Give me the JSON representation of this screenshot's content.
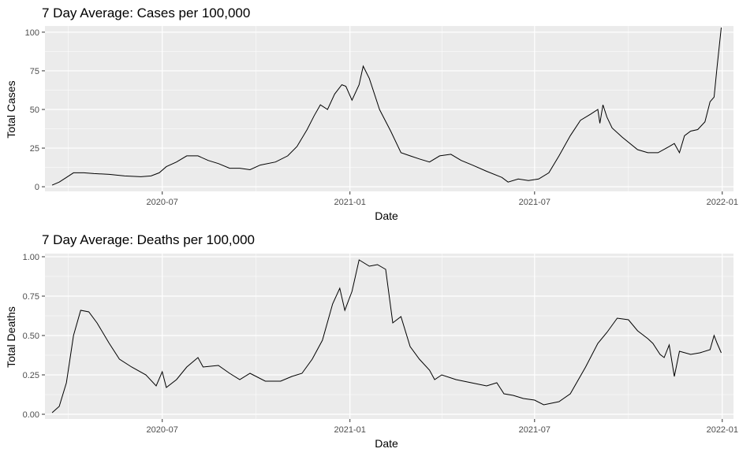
{
  "chart_data": [
    {
      "type": "line",
      "title": "7 Day Average: Cases per 100,000",
      "xlabel": "Date",
      "ylabel": "Total Cases",
      "xlim": [
        "2020-03-08",
        "2022-01-12"
      ],
      "ylim": [
        -3,
        104
      ],
      "x_ticks": [
        "2020-07-01",
        "2021-01-01",
        "2021-07-01",
        "2022-01-01"
      ],
      "x_tick_labels": [
        "2020-07",
        "2021-01",
        "2021-07",
        "2022-01"
      ],
      "y_ticks": [
        0,
        25,
        50,
        75,
        100
      ],
      "y_tick_labels": [
        "0",
        "25",
        "50",
        "75",
        "100"
      ],
      "grid": true,
      "legend": "none",
      "series": [
        {
          "x": [
            "2020-03-15",
            "2020-03-22",
            "2020-03-29",
            "2020-04-05",
            "2020-04-15",
            "2020-04-25",
            "2020-05-10",
            "2020-05-25",
            "2020-06-10",
            "2020-06-20",
            "2020-06-28",
            "2020-07-05",
            "2020-07-15",
            "2020-07-25",
            "2020-08-05",
            "2020-08-15",
            "2020-08-25",
            "2020-09-05",
            "2020-09-15",
            "2020-09-25",
            "2020-10-05",
            "2020-10-20",
            "2020-11-01",
            "2020-11-10",
            "2020-11-20",
            "2020-11-27",
            "2020-12-03",
            "2020-12-10",
            "2020-12-17",
            "2020-12-24",
            "2020-12-28",
            "2021-01-03",
            "2021-01-10",
            "2021-01-14",
            "2021-01-20",
            "2021-01-30",
            "2021-02-10",
            "2021-02-20",
            "2021-03-01",
            "2021-03-10",
            "2021-03-20",
            "2021-03-30",
            "2021-04-10",
            "2021-04-20",
            "2021-05-01",
            "2021-05-15",
            "2021-05-30",
            "2021-06-05",
            "2021-06-15",
            "2021-06-25",
            "2021-07-05",
            "2021-07-15",
            "2021-07-25",
            "2021-08-05",
            "2021-08-15",
            "2021-08-25",
            "2021-09-01",
            "2021-09-03",
            "2021-09-06",
            "2021-09-10",
            "2021-09-15",
            "2021-09-25",
            "2021-10-10",
            "2021-10-20",
            "2021-10-30",
            "2021-11-10",
            "2021-11-15",
            "2021-11-20",
            "2021-11-25",
            "2021-12-01",
            "2021-12-08",
            "2021-12-15",
            "2021-12-20",
            "2021-12-24",
            "2021-12-27",
            "2021-12-31"
          ],
          "y": [
            1,
            3,
            6,
            9,
            9,
            8.5,
            8,
            7,
            6.5,
            7,
            9,
            13,
            16,
            20,
            20,
            17,
            15,
            12,
            12,
            11,
            14,
            16,
            20,
            26,
            37,
            46,
            53,
            50,
            60,
            66,
            65,
            56,
            66,
            78,
            70,
            50,
            36,
            22,
            20,
            18,
            16,
            20,
            21,
            17,
            14,
            10,
            6,
            3,
            5,
            4,
            5,
            9,
            20,
            33,
            43,
            47,
            50,
            41,
            53,
            45,
            38,
            32,
            24,
            22,
            22,
            26,
            28,
            22,
            33,
            36,
            37,
            42,
            55,
            58,
            78,
            103
          ]
        }
      ]
    },
    {
      "type": "line",
      "title": "7 Day Average: Deaths per 100,000",
      "xlabel": "Date",
      "ylabel": "Total Deaths",
      "xlim": [
        "2020-03-08",
        "2022-01-12"
      ],
      "ylim": [
        -0.03,
        1.02
      ],
      "x_ticks": [
        "2020-07-01",
        "2021-01-01",
        "2021-07-01",
        "2022-01-01"
      ],
      "x_tick_labels": [
        "2020-07",
        "2021-01",
        "2021-07",
        "2022-01"
      ],
      "y_ticks": [
        0,
        0.25,
        0.5,
        0.75,
        1.0
      ],
      "y_tick_labels": [
        "0.00",
        "0.25",
        "0.50",
        "0.75",
        "1.00"
      ],
      "grid": true,
      "legend": "none",
      "series": [
        {
          "x": [
            "2020-03-15",
            "2020-03-22",
            "2020-03-29",
            "2020-04-05",
            "2020-04-12",
            "2020-04-20",
            "2020-04-28",
            "2020-05-10",
            "2020-05-20",
            "2020-06-01",
            "2020-06-15",
            "2020-06-25",
            "2020-07-01",
            "2020-07-05",
            "2020-07-15",
            "2020-07-25",
            "2020-08-05",
            "2020-08-10",
            "2020-08-25",
            "2020-09-05",
            "2020-09-15",
            "2020-09-25",
            "2020-10-10",
            "2020-10-25",
            "2020-11-05",
            "2020-11-15",
            "2020-11-25",
            "2020-12-05",
            "2020-12-15",
            "2020-12-22",
            "2020-12-27",
            "2021-01-03",
            "2021-01-10",
            "2021-01-20",
            "2021-01-28",
            "2021-02-05",
            "2021-02-12",
            "2021-02-20",
            "2021-03-01",
            "2021-03-10",
            "2021-03-20",
            "2021-03-25",
            "2021-04-01",
            "2021-04-15",
            "2021-04-30",
            "2021-05-15",
            "2021-05-25",
            "2021-06-01",
            "2021-06-10",
            "2021-06-20",
            "2021-07-01",
            "2021-07-10",
            "2021-07-25",
            "2021-08-05",
            "2021-08-20",
            "2021-09-01",
            "2021-09-10",
            "2021-09-20",
            "2021-10-01",
            "2021-10-10",
            "2021-10-20",
            "2021-10-25",
            "2021-11-01",
            "2021-11-05",
            "2021-11-10",
            "2021-11-15",
            "2021-11-20",
            "2021-12-01",
            "2021-12-10",
            "2021-12-20",
            "2021-12-24",
            "2021-12-27",
            "2021-12-31"
          ],
          "y": [
            0.01,
            0.05,
            0.2,
            0.5,
            0.66,
            0.65,
            0.58,
            0.45,
            0.35,
            0.3,
            0.25,
            0.18,
            0.27,
            0.17,
            0.22,
            0.3,
            0.36,
            0.3,
            0.31,
            0.26,
            0.22,
            0.26,
            0.21,
            0.21,
            0.24,
            0.26,
            0.35,
            0.47,
            0.7,
            0.8,
            0.66,
            0.78,
            0.98,
            0.94,
            0.95,
            0.92,
            0.58,
            0.62,
            0.43,
            0.35,
            0.28,
            0.22,
            0.25,
            0.22,
            0.2,
            0.18,
            0.2,
            0.13,
            0.12,
            0.1,
            0.09,
            0.06,
            0.08,
            0.13,
            0.3,
            0.45,
            0.52,
            0.61,
            0.6,
            0.53,
            0.48,
            0.45,
            0.38,
            0.36,
            0.44,
            0.24,
            0.4,
            0.38,
            0.39,
            0.41,
            0.5,
            0.45,
            0.39
          ]
        }
      ]
    }
  ]
}
